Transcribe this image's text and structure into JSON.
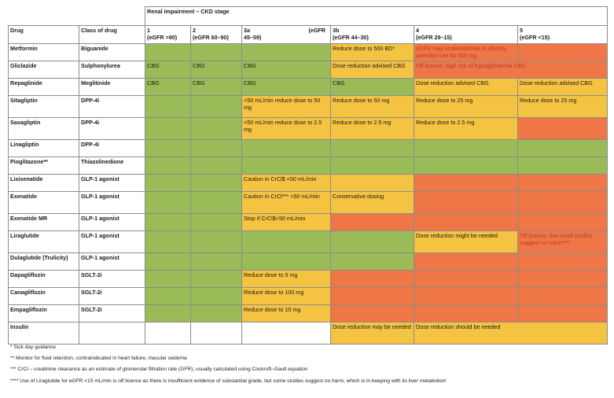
{
  "header": {
    "group_title": "Renal impairment – CKD stage",
    "drug_label": "Drug",
    "class_label": "Class of drug",
    "stages": [
      {
        "num": "1",
        "range": "(eGFR >90)"
      },
      {
        "num": "2",
        "range": "(eGFR 60–90)"
      },
      {
        "num": "3a",
        "range": "45–59)",
        "extra": "(eGFR"
      },
      {
        "num": "3b",
        "range": "(eGFR 44–30)"
      },
      {
        "num": "4",
        "range": "(eGFR 29–15)"
      },
      {
        "num": "5",
        "range": "(eGFR <15)"
      }
    ]
  },
  "rows": [
    {
      "drug": "Metformin",
      "class": "Biguanide",
      "cells": [
        {
          "c": "g",
          "t": ""
        },
        {
          "c": "g",
          "t": ""
        },
        {
          "c": "g",
          "t": ""
        },
        {
          "c": "y",
          "t": "Reduce dose to 500 BD*"
        },
        {
          "c": "o",
          "t": "eGFR may underestimate in obesity, potential role for 500 mg",
          "red": true
        },
        {
          "c": "o",
          "t": ""
        }
      ]
    },
    {
      "drug": "Gliclazide",
      "class": "Sulphonylurea",
      "cells": [
        {
          "c": "g",
          "t": "CBG"
        },
        {
          "c": "g",
          "t": "CBG"
        },
        {
          "c": "g",
          "t": "CBG"
        },
        {
          "c": "y",
          "t": "Dose reduction advised CBG"
        },
        {
          "c": "o",
          "t": "Off licence: high risk of hypoglycaemia CBG",
          "red": true,
          "span": 2
        }
      ]
    },
    {
      "drug": "Repaglinide",
      "class": "Meglitinide",
      "cells": [
        {
          "c": "g",
          "t": "CBG"
        },
        {
          "c": "g",
          "t": "CBG"
        },
        {
          "c": "g",
          "t": "CBG"
        },
        {
          "c": "g",
          "t": "CBG"
        },
        {
          "c": "y",
          "t": "Dose reduction advised CBG"
        },
        {
          "c": "y",
          "t": "Dose reduction advised CBG"
        }
      ]
    },
    {
      "drug": "Sitagliptin",
      "class": "DPP-4i",
      "cells": [
        {
          "c": "g",
          "t": ""
        },
        {
          "c": "g",
          "t": ""
        },
        {
          "c": "y",
          "t": "<50 mL/min reduce dose to 50 mg"
        },
        {
          "c": "y",
          "t": "Reduce dose to 50 mg"
        },
        {
          "c": "y",
          "t": "Reduce dose to 25 mg"
        },
        {
          "c": "y",
          "t": "Reduce dose to 25 mg"
        }
      ]
    },
    {
      "drug": "Saxagliptin",
      "class": "DPP-4i",
      "cells": [
        {
          "c": "g",
          "t": ""
        },
        {
          "c": "g",
          "t": ""
        },
        {
          "c": "y",
          "t": "<50 mL/min reduce dose to 2.5 mg"
        },
        {
          "c": "y",
          "t": "Reduce dose to 2.5 mg"
        },
        {
          "c": "y",
          "t": "Reduce dose to 2.5 mg"
        },
        {
          "c": "o",
          "t": ""
        }
      ]
    },
    {
      "drug": "Linagliptin",
      "class": "DPP-4i",
      "cells": [
        {
          "c": "g",
          "t": ""
        },
        {
          "c": "g",
          "t": ""
        },
        {
          "c": "g",
          "t": ""
        },
        {
          "c": "g",
          "t": ""
        },
        {
          "c": "g",
          "t": ""
        },
        {
          "c": "g",
          "t": ""
        }
      ]
    },
    {
      "drug": "Pioglitazone**",
      "class": "Thiazolinedione",
      "cells": [
        {
          "c": "g",
          "t": ""
        },
        {
          "c": "g",
          "t": ""
        },
        {
          "c": "g",
          "t": ""
        },
        {
          "c": "g",
          "t": ""
        },
        {
          "c": "g",
          "t": ""
        },
        {
          "c": "g",
          "t": ""
        }
      ]
    },
    {
      "drug": "Lixisenatide",
      "class": "GLP-1 agonist",
      "cells": [
        {
          "c": "g",
          "t": ""
        },
        {
          "c": "g",
          "t": ""
        },
        {
          "c": "y",
          "t": "Caution in CrCl$ <50 mL/min"
        },
        {
          "c": "y",
          "t": ""
        },
        {
          "c": "o",
          "t": ""
        },
        {
          "c": "o",
          "t": ""
        }
      ]
    },
    {
      "drug": "Exenatide",
      "class": "GLP-1 agonist",
      "cells": [
        {
          "c": "g",
          "t": ""
        },
        {
          "c": "g",
          "t": ""
        },
        {
          "c": "y",
          "t": "Caution in CrCl*** <50 mL/min"
        },
        {
          "c": "y",
          "t": "Conservative dosing"
        },
        {
          "c": "o",
          "t": ""
        },
        {
          "c": "o",
          "t": ""
        }
      ]
    },
    {
      "drug": "Exenatide MR",
      "class": "GLP-1 agonist",
      "cells": [
        {
          "c": "g",
          "t": ""
        },
        {
          "c": "g",
          "t": ""
        },
        {
          "c": "y",
          "t": "Stop if CrCl$<50 mL/min"
        },
        {
          "c": "o",
          "t": ""
        },
        {
          "c": "o",
          "t": ""
        },
        {
          "c": "o",
          "t": ""
        }
      ]
    },
    {
      "drug": "Liraglutide",
      "class": "GLP-1 agonist",
      "cells": [
        {
          "c": "g",
          "t": ""
        },
        {
          "c": "g",
          "t": ""
        },
        {
          "c": "g",
          "t": ""
        },
        {
          "c": "g",
          "t": ""
        },
        {
          "c": "y",
          "t": "Dose reduction might be needed"
        },
        {
          "c": "o",
          "t": "Off licence, few small studies suggest no harm****",
          "red": true
        }
      ]
    },
    {
      "drug": "Dulaglutide (Trulicity)",
      "class": "GLP-1 agonist",
      "cells": [
        {
          "c": "g",
          "t": ""
        },
        {
          "c": "g",
          "t": ""
        },
        {
          "c": "g",
          "t": ""
        },
        {
          "c": "g",
          "t": ""
        },
        {
          "c": "o",
          "t": ""
        },
        {
          "c": "o",
          "t": ""
        }
      ]
    },
    {
      "drug": "Dapagliflozin",
      "class": "SGLT-2i",
      "cells": [
        {
          "c": "g",
          "t": ""
        },
        {
          "c": "g",
          "t": ""
        },
        {
          "c": "y",
          "t": "Reduce dose to 5 mg"
        },
        {
          "c": "o",
          "t": ""
        },
        {
          "c": "o",
          "t": ""
        },
        {
          "c": "o",
          "t": ""
        }
      ]
    },
    {
      "drug": "Canagliflozin",
      "class": "SGLT-2i",
      "cells": [
        {
          "c": "g",
          "t": ""
        },
        {
          "c": "g",
          "t": ""
        },
        {
          "c": "y",
          "t": "Reduce dose to 100 mg"
        },
        {
          "c": "o",
          "t": ""
        },
        {
          "c": "o",
          "t": ""
        },
        {
          "c": "o",
          "t": ""
        }
      ]
    },
    {
      "drug": "Empagliflozin",
      "class": "SGLT-2i",
      "cells": [
        {
          "c": "g",
          "t": ""
        },
        {
          "c": "g",
          "t": ""
        },
        {
          "c": "y",
          "t": "Reduce dose to 10 mg"
        },
        {
          "c": "o",
          "t": ""
        },
        {
          "c": "o",
          "t": ""
        },
        {
          "c": "o",
          "t": ""
        }
      ]
    },
    {
      "drug": "Insulin",
      "class": "",
      "cells": [
        {
          "c": "w",
          "t": ""
        },
        {
          "c": "w",
          "t": ""
        },
        {
          "c": "w",
          "t": ""
        },
        {
          "c": "y",
          "t": "Dose reduction may be needed"
        },
        {
          "c": "y",
          "t": "Dose reduction should be needed",
          "span": 2
        }
      ]
    }
  ],
  "notes": [
    "* Sick day guidance",
    "** Monitor for fluid retention, contraindicated in heart failure, macular oedema",
    "*** CrCl – creatinine clearance as an estimate of glomerular filtration rate (GFR), usually calculated using Cockroft–Gault equation",
    "**** Use of Liraglutide for eGFR <15 mL/min is off licence as there is insufficient evidence of substantial grade, but some studies suggest no harm, which is in keeping with its liver metabolism"
  ],
  "colors": {
    "green": "#9bbb59",
    "yellow": "#f5c342",
    "red": "#ef7646"
  }
}
